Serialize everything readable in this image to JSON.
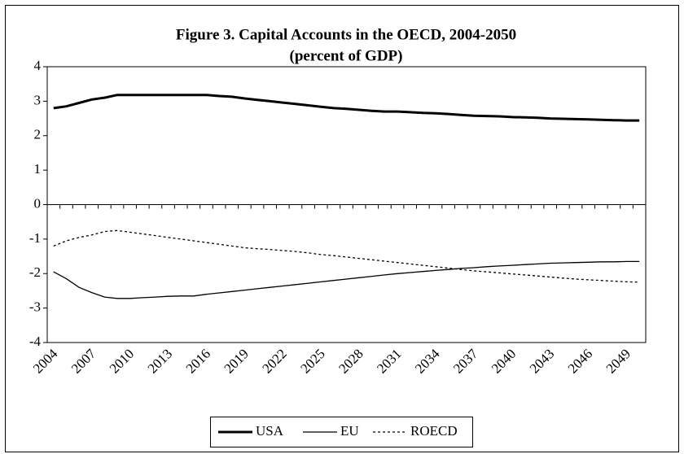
{
  "chart_data": {
    "type": "line",
    "title": "Figure 3. Capital Accounts in the OECD, 2004-2050",
    "subtitle": "(percent of GDP)",
    "categories": [
      "2004",
      null,
      null,
      "2007",
      null,
      null,
      "2010",
      null,
      null,
      "2013",
      null,
      null,
      "2016",
      null,
      null,
      "2019",
      null,
      null,
      "2022",
      null,
      null,
      "2025",
      null,
      null,
      "2028",
      null,
      null,
      "2031",
      null,
      null,
      "2034",
      null,
      null,
      "2037",
      null,
      null,
      "2040",
      null,
      null,
      "2043",
      null,
      null,
      "2046",
      null,
      null,
      "2049",
      null
    ],
    "series": [
      {
        "name": "USA",
        "color": "#000000",
        "line_width": 3,
        "dash": "solid",
        "values": [
          2.8,
          2.85,
          2.95,
          3.05,
          3.1,
          3.18,
          3.18,
          3.18,
          3.18,
          3.18,
          3.18,
          3.18,
          3.18,
          3.15,
          3.13,
          3.08,
          3.04,
          3.0,
          2.96,
          2.92,
          2.88,
          2.84,
          2.8,
          2.78,
          2.75,
          2.72,
          2.7,
          2.7,
          2.68,
          2.66,
          2.65,
          2.63,
          2.6,
          2.58,
          2.57,
          2.56,
          2.54,
          2.53,
          2.52,
          2.5,
          2.49,
          2.48,
          2.47,
          2.46,
          2.45,
          2.44,
          2.44
        ]
      },
      {
        "name": "EU",
        "color": "#000000",
        "line_width": 1.3,
        "dash": "solid",
        "values": [
          -1.95,
          -2.15,
          -2.4,
          -2.55,
          -2.68,
          -2.72,
          -2.72,
          -2.7,
          -2.68,
          -2.66,
          -2.65,
          -2.65,
          -2.6,
          -2.56,
          -2.52,
          -2.48,
          -2.44,
          -2.4,
          -2.36,
          -2.32,
          -2.28,
          -2.24,
          -2.2,
          -2.16,
          -2.12,
          -2.08,
          -2.04,
          -2.0,
          -1.97,
          -1.94,
          -1.91,
          -1.88,
          -1.85,
          -1.83,
          -1.8,
          -1.78,
          -1.76,
          -1.74,
          -1.72,
          -1.7,
          -1.69,
          -1.68,
          -1.67,
          -1.66,
          -1.66,
          -1.65,
          -1.65
        ]
      },
      {
        "name": "ROECD",
        "color": "#000000",
        "line_width": 1.3,
        "dash": "dotted",
        "values": [
          -1.2,
          -1.05,
          -0.95,
          -0.88,
          -0.78,
          -0.75,
          -0.8,
          -0.85,
          -0.9,
          -0.95,
          -1.0,
          -1.05,
          -1.1,
          -1.15,
          -1.2,
          -1.25,
          -1.28,
          -1.3,
          -1.33,
          -1.36,
          -1.4,
          -1.45,
          -1.48,
          -1.52,
          -1.56,
          -1.6,
          -1.64,
          -1.68,
          -1.72,
          -1.76,
          -1.8,
          -1.84,
          -1.88,
          -1.92,
          -1.95,
          -1.98,
          -2.01,
          -2.04,
          -2.07,
          -2.1,
          -2.13,
          -2.16,
          -2.18,
          -2.2,
          -2.22,
          -2.24,
          -2.25
        ]
      }
    ],
    "ylim": [
      -4,
      4
    ],
    "yticks": [
      -4,
      -3,
      -2,
      -1,
      0,
      1,
      2,
      3,
      4
    ],
    "grid": false,
    "legend": "bottom"
  }
}
